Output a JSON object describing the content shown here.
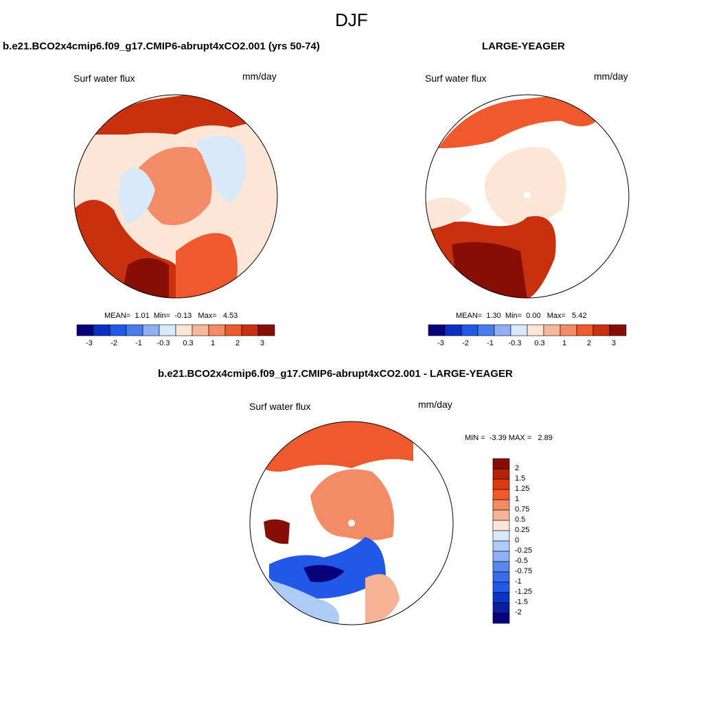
{
  "figure": {
    "title": "DJF"
  },
  "panels": [
    {
      "title": "b.e21.BCO2x4cmip6.f09_g17.CMIP6-abrupt4xCO2.001 (yrs 50-74)",
      "variable_label": "Surf water flux",
      "units_label": "mm/day",
      "stats": {
        "mean_label": "MEAN=",
        "mean": "1.01",
        "min_label": "Min=",
        "min": "-0.13",
        "max_label": "Max=",
        "max": "4.53"
      },
      "colorbar_ticks": [
        "-3",
        "-2",
        "-1",
        "-0.3",
        "0.3",
        "1",
        "2",
        "3"
      ]
    },
    {
      "title": "LARGE-YEAGER",
      "variable_label": "Surf water flux",
      "units_label": "mm/day",
      "stats": {
        "mean_label": "MEAN=",
        "mean": "1.30",
        "min_label": "Min=",
        "min": "0.00",
        "max_label": "Max=",
        "max": "5.42"
      },
      "colorbar_ticks": [
        "-3",
        "-2",
        "-1",
        "-0.3",
        "0.3",
        "1",
        "2",
        "3"
      ]
    },
    {
      "title": "b.e21.BCO2x4cmip6.f09_g17.CMIP6-abrupt4xCO2.001 - LARGE-YEAGER",
      "variable_label": "Surf water flux",
      "units_label": "mm/day",
      "stats": {
        "min_label": "MIN =",
        "min": "-3.39",
        "max_label": "MAX =",
        "max": "2.89"
      },
      "colorbar_ticks": [
        "2",
        "1.5",
        "1.25",
        "1",
        "0.75",
        "0.5",
        "0.25",
        "0",
        "-0.25",
        "-0.5",
        "-0.75",
        "-1",
        "-1.25",
        "-1.5",
        "-2"
      ]
    }
  ],
  "colors": {
    "diverging_12": [
      "#08007a",
      "#0b2fc2",
      "#2159e6",
      "#4a7cf0",
      "#8eb0f5",
      "#d7e9fb",
      "#fde6d6",
      "#f9b79a",
      "#f48b67",
      "#ee5a2e",
      "#c9300e",
      "#870e05"
    ],
    "diverging_16": [
      "#870e05",
      "#b52208",
      "#db3a0e",
      "#ef5a2a",
      "#f28a62",
      "#f6b395",
      "#fde6d6",
      "#d7e9fb",
      "#aecaf7",
      "#8eb0f5",
      "#5a86ef",
      "#3c6ae8",
      "#2159e6",
      "#0b35c8",
      "#0a1fa0",
      "#08007a"
    ]
  },
  "chart_data": [
    {
      "type": "heatmap",
      "projection": "north-polar-stereographic",
      "title": "b.e21.BCO2x4cmip6.f09_g17.CMIP6-abrupt4xCO2.001 (yrs 50-74)",
      "variable": "Surf water flux",
      "units": "mm/day",
      "mean": 1.01,
      "min": -0.13,
      "max": 4.53,
      "levels": [
        -3,
        -2,
        -1,
        -0.3,
        0.3,
        1,
        2,
        3
      ],
      "colorbar": "horizontal"
    },
    {
      "type": "heatmap",
      "projection": "north-polar-stereographic",
      "title": "LARGE-YEAGER",
      "variable": "Surf water flux",
      "units": "mm/day",
      "mean": 1.3,
      "min": 0.0,
      "max": 5.42,
      "levels": [
        -3,
        -2,
        -1,
        -0.3,
        0.3,
        1,
        2,
        3
      ],
      "colorbar": "horizontal"
    },
    {
      "type": "heatmap",
      "projection": "north-polar-stereographic",
      "title": "b.e21.BCO2x4cmip6.f09_g17.CMIP6-abrupt4xCO2.001 - LARGE-YEAGER",
      "variable": "Surf water flux",
      "units": "mm/day",
      "min": -3.39,
      "max": 2.89,
      "levels": [
        -2,
        -1.5,
        -1.25,
        -1,
        -0.75,
        -0.5,
        -0.25,
        0,
        0.25,
        0.5,
        0.75,
        1,
        1.25,
        1.5,
        2
      ],
      "colorbar": "vertical"
    }
  ]
}
